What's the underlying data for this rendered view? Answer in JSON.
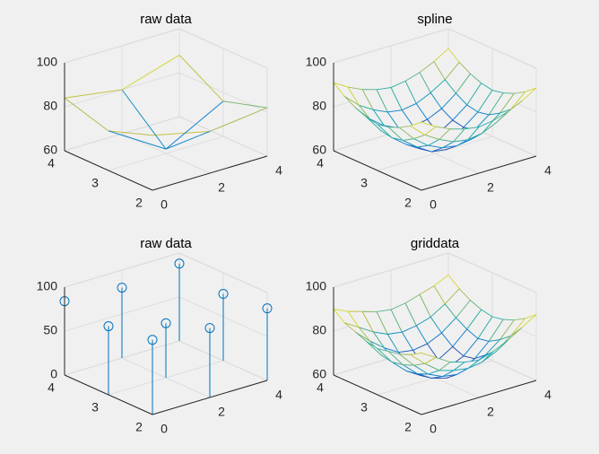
{
  "chart_data": [
    {
      "type": "mesh",
      "title": "raw data",
      "colormap": "parula",
      "grid": true,
      "hidden": false,
      "x": [
        0,
        2,
        4
      ],
      "y": [
        2,
        3,
        4
      ],
      "z": [
        [
          85,
          79,
          82
        ],
        [
          78,
          62,
          76
        ],
        [
          84,
          80,
          88
        ]
      ],
      "xlim": [
        0,
        4
      ],
      "ylim": [
        2,
        4
      ],
      "zlim": [
        60,
        100
      ],
      "xticks": [
        0,
        2,
        4
      ],
      "yticks": [
        2,
        3,
        4
      ],
      "zticks": [
        60,
        80,
        100
      ]
    },
    {
      "type": "mesh",
      "title": "spline",
      "colormap": "parula",
      "grid": true,
      "hidden": true,
      "x": [
        0,
        0.5,
        1,
        1.5,
        2,
        2.5,
        3,
        3.5,
        4
      ],
      "y": [
        2,
        2.25,
        2.5,
        2.75,
        3,
        3.25,
        3.5,
        3.75,
        4
      ],
      "z": [
        [
          91,
          87,
          84,
          82,
          81,
          82,
          84,
          87,
          91
        ],
        [
          87,
          81,
          77,
          74,
          73,
          74,
          77,
          81,
          87
        ],
        [
          84,
          77,
          72,
          69,
          68,
          69,
          72,
          77,
          84
        ],
        [
          82,
          74,
          69,
          65,
          64,
          65,
          69,
          74,
          82
        ],
        [
          81,
          73,
          68,
          64,
          63,
          64,
          68,
          73,
          81
        ],
        [
          82,
          74,
          69,
          65,
          64,
          65,
          69,
          74,
          82
        ],
        [
          84,
          77,
          72,
          69,
          68,
          69,
          72,
          77,
          84
        ],
        [
          87,
          81,
          77,
          74,
          73,
          74,
          77,
          81,
          87
        ],
        [
          91,
          87,
          84,
          82,
          81,
          82,
          84,
          87,
          91
        ]
      ],
      "xlim": [
        0,
        4
      ],
      "ylim": [
        2,
        4
      ],
      "zlim": [
        60,
        100
      ],
      "xticks": [
        0,
        2,
        4
      ],
      "yticks": [
        2,
        3,
        4
      ],
      "zticks": [
        60,
        80,
        100
      ]
    },
    {
      "type": "stem",
      "title": "raw data",
      "color": "#0072bd",
      "grid": true,
      "x": [
        0,
        2,
        4
      ],
      "y": [
        2,
        3,
        4
      ],
      "z": [
        [
          85,
          79,
          82
        ],
        [
          78,
          62,
          76
        ],
        [
          84,
          80,
          88
        ]
      ],
      "xlim": [
        0,
        4
      ],
      "ylim": [
        2,
        4
      ],
      "zlim": [
        0,
        100
      ],
      "xticks": [
        0,
        2,
        4
      ],
      "yticks": [
        2,
        3,
        4
      ],
      "zticks": [
        0,
        50,
        100
      ]
    },
    {
      "type": "mesh",
      "title": "griddata",
      "colormap": "parula",
      "grid": true,
      "hidden": true,
      "x": [
        0,
        0.5,
        1,
        1.5,
        2,
        2.5,
        3,
        3.5,
        4
      ],
      "y": [
        2,
        2.25,
        2.5,
        2.75,
        3,
        3.25,
        3.5,
        3.75,
        4
      ],
      "z": [
        [
          88,
          84,
          80,
          78,
          77,
          79,
          82,
          86,
          90
        ],
        [
          85,
          79,
          74,
          72,
          71,
          72,
          75,
          80,
          86
        ],
        [
          83,
          76,
          70,
          67,
          66,
          68,
          71,
          76,
          83
        ],
        [
          82,
          74,
          68,
          64,
          62,
          64,
          67,
          73,
          81
        ],
        [
          81,
          73,
          67,
          63,
          62,
          63,
          66,
          72,
          80
        ],
        [
          82,
          74,
          69,
          65,
          63,
          64,
          68,
          74,
          81
        ],
        [
          84,
          78,
          73,
          69,
          68,
          69,
          72,
          77,
          83
        ],
        [
          86,
          82,
          78,
          75,
          74,
          75,
          77,
          81,
          86
        ],
        [
          90,
          87,
          85,
          83,
          82,
          83,
          85,
          87,
          90
        ]
      ],
      "xlim": [
        0,
        4
      ],
      "ylim": [
        2,
        4
      ],
      "zlim": [
        60,
        100
      ],
      "xticks": [
        0,
        2,
        4
      ],
      "yticks": [
        2,
        3,
        4
      ],
      "zticks": [
        60,
        80,
        100
      ]
    }
  ]
}
